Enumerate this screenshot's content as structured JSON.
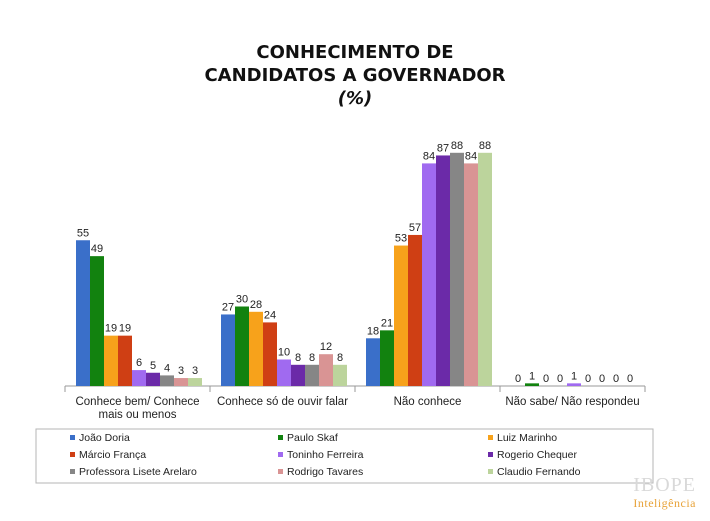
{
  "title_lines": [
    "CONHECIMENTO DE",
    "CANDIDATOS A GOVERNADOR",
    "(%)"
  ],
  "logo": {
    "brand": "IBOPE",
    "sub": "Inteligência"
  },
  "chart_data": {
    "type": "bar",
    "categories": [
      [
        "Conhece bem/ Conhece",
        "mais ou menos"
      ],
      [
        "Conhece só de ouvir falar"
      ],
      [
        "Não conhece"
      ],
      [
        "Não sabe/ Não respondeu"
      ]
    ],
    "ylim": [
      0,
      100
    ],
    "grid": false,
    "legend_position": "bottom",
    "series": [
      {
        "name": "João Doria",
        "color": "#3a6fc9",
        "values": [
          55,
          27,
          18,
          0
        ]
      },
      {
        "name": "Paulo Skaf",
        "color": "#12820f",
        "values": [
          49,
          30,
          21,
          1
        ]
      },
      {
        "name": "Luiz Marinho",
        "color": "#f7a21b",
        "values": [
          19,
          28,
          53,
          0
        ]
      },
      {
        "name": "Márcio França",
        "color": "#cf3f14",
        "values": [
          19,
          24,
          57,
          0
        ]
      },
      {
        "name": "Toninho Ferreira",
        "color": "#a06af0",
        "values": [
          6,
          10,
          84,
          1
        ]
      },
      {
        "name": "Rogerio Chequer",
        "color": "#6b2aa8",
        "values": [
          5,
          8,
          87,
          0
        ]
      },
      {
        "name": "Professora Lisete Arelaro",
        "color": "#868686",
        "values": [
          4,
          8,
          88,
          0
        ]
      },
      {
        "name": "Rodrigo Tavares",
        "color": "#d99494",
        "values": [
          3,
          12,
          84,
          0
        ]
      },
      {
        "name": "Claudio Fernando",
        "color": "#bcd49c",
        "values": [
          3,
          8,
          88,
          0
        ]
      }
    ],
    "data_label_texts": [
      [
        "55",
        "49",
        "19",
        "19",
        "6",
        "5",
        "4",
        "3",
        "3"
      ],
      [
        "27",
        "30",
        "28",
        "24",
        "10",
        "8",
        "8",
        "12",
        "8"
      ],
      [
        "18",
        "21",
        "53",
        "57",
        "84",
        "87",
        "88",
        "84",
        "88"
      ],
      [
        "0",
        "1",
        "0",
        "0",
        "1",
        "0",
        "0",
        "0",
        "0"
      ]
    ]
  }
}
